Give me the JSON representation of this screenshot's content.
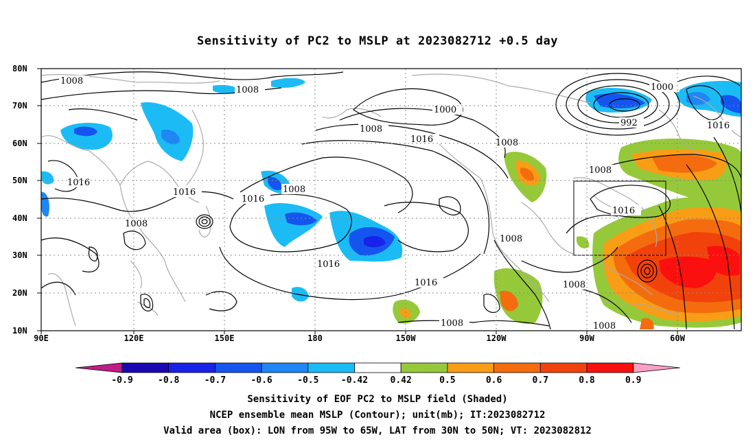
{
  "title": "Sensitivity of PC2 to MSLP at 2023082712 +0.5 day",
  "map": {
    "lat_labels": [
      "80N",
      "70N",
      "60N",
      "50N",
      "40N",
      "30N",
      "20N",
      "10N"
    ],
    "lon_labels": [
      "90E",
      "120E",
      "150E",
      "180",
      "150W",
      "120W",
      "90W",
      "60W"
    ],
    "contour_labels": [
      "1008",
      "1008",
      "1000",
      "1008",
      "1016",
      "1008",
      "1000",
      "992",
      "1016",
      "1016",
      "1008",
      "1016",
      "1016",
      "1008",
      "1016",
      "1008",
      "1016",
      "1016",
      "1008",
      "1008",
      "1008",
      "1008",
      "1008"
    ],
    "valid_box": {
      "lon_from": "95W",
      "lon_to": "65W",
      "lat_from": "30N",
      "lat_to": "50N"
    }
  },
  "colorbar": {
    "labels": [
      "-0.9",
      "-0.8",
      "-0.7",
      "-0.6",
      "-0.5",
      "-0.42",
      "0.42",
      "0.5",
      "0.6",
      "0.7",
      "0.8",
      "0.9"
    ],
    "colors": [
      "#1a08b4",
      "#1822e8",
      "#1455f0",
      "#1f86f4",
      "#1bbcf5",
      "#ffffff",
      "#96c93a",
      "#f99d16",
      "#f46c0e",
      "#f2420c",
      "#fb0f0f"
    ],
    "low_end_color": "#c01d87",
    "high_end_color": "#f7a1c6"
  },
  "captions": {
    "line1": "Sensitivity of EOF PC2 to MSLP field (Shaded)",
    "line2": "NCEP ensemble mean MSLP (Contour); unit(mb); IT:2023082712",
    "line3": "Valid area (box): LON from 95W to 65W, LAT from 30N to 50N; VT: 2023082812"
  }
}
